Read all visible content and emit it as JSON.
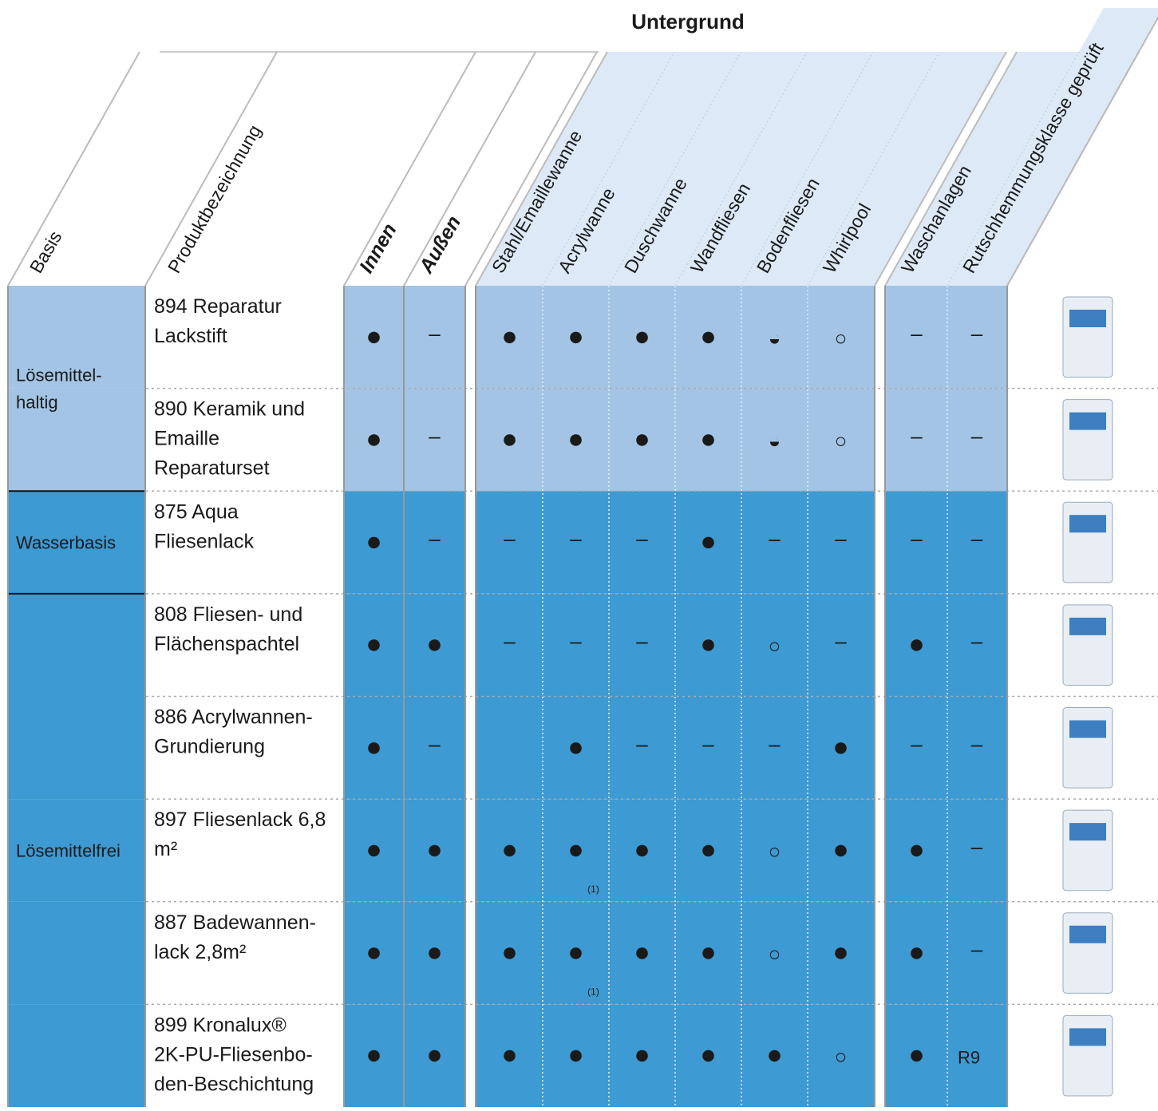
{
  "header": {
    "title": "Untergrund"
  },
  "columns": [
    "Basis",
    "Produktbezeichnung",
    "Innen",
    "Außen",
    "Stahl/Emaillewanne",
    "Acrylwanne",
    "Duschwanne",
    "Wandfliesen",
    "Bodenfliesen",
    "Whirlpool",
    "Waschanlagen",
    "Rutschhemmungsklasse geprüft"
  ],
  "groups": [
    {
      "label": [
        "Lösemittel-",
        "haltig"
      ],
      "color": "#a3c4e4",
      "rows": [
        {
          "name": [
            "894 Reparatur",
            "Lackstift"
          ],
          "cells": [
            "●",
            "–",
            "●",
            "●",
            "●",
            "●",
            "◒",
            "○",
            "–",
            "–"
          ]
        },
        {
          "name": [
            "890 Keramik und",
            "Emaille",
            "Reparaturset"
          ],
          "cells": [
            "●",
            "–",
            "●",
            "●",
            "●",
            "●",
            "◒",
            "○",
            "–",
            "–"
          ]
        }
      ]
    },
    {
      "label": [
        "Wasserbasis"
      ],
      "color": "#3d9ad2",
      "rows": [
        {
          "name": [
            "875 Aqua",
            "Fliesenlack"
          ],
          "cells": [
            "●",
            "–",
            "–",
            "–",
            "–",
            "●",
            "–",
            "–",
            "–",
            "–"
          ]
        }
      ]
    },
    {
      "label": [
        "Lösemittelfrei"
      ],
      "color": "#3d9ad2",
      "rows": [
        {
          "name": [
            "808 Fliesen- und",
            "Flächenspachtel"
          ],
          "cells": [
            "●",
            "●",
            "–",
            "–",
            "–",
            "●",
            "○",
            "–",
            "●",
            "–"
          ]
        },
        {
          "name": [
            "886 Acrylwannen-",
            "Grundierung"
          ],
          "cells": [
            "●",
            "–",
            null,
            "●",
            "–",
            "–",
            "–",
            "●",
            "–",
            "–"
          ]
        },
        {
          "name": [
            "897 Fliesenlack 6,8",
            "m²"
          ],
          "cells": [
            "●",
            "●",
            "●",
            {
              "symbol": "●",
              "note": "(1)"
            },
            "●",
            "●",
            "○",
            "●",
            "●",
            "–"
          ]
        },
        {
          "name": [
            "887 Badewannen-",
            "lack 2,8m²"
          ],
          "cells": [
            "●",
            "●",
            "●",
            {
              "symbol": "●",
              "note": "(1)"
            },
            "●",
            "●",
            "○",
            "●",
            "●",
            "–"
          ]
        },
        {
          "name": [
            "899 Kronalux®",
            "2K-PU-Fliesenbo-",
            "den-Beschichtung"
          ],
          "cells": [
            "●",
            "●",
            "●",
            "●",
            "●",
            "●",
            "●",
            "○",
            "●",
            "R9"
          ]
        }
      ]
    }
  ]
}
